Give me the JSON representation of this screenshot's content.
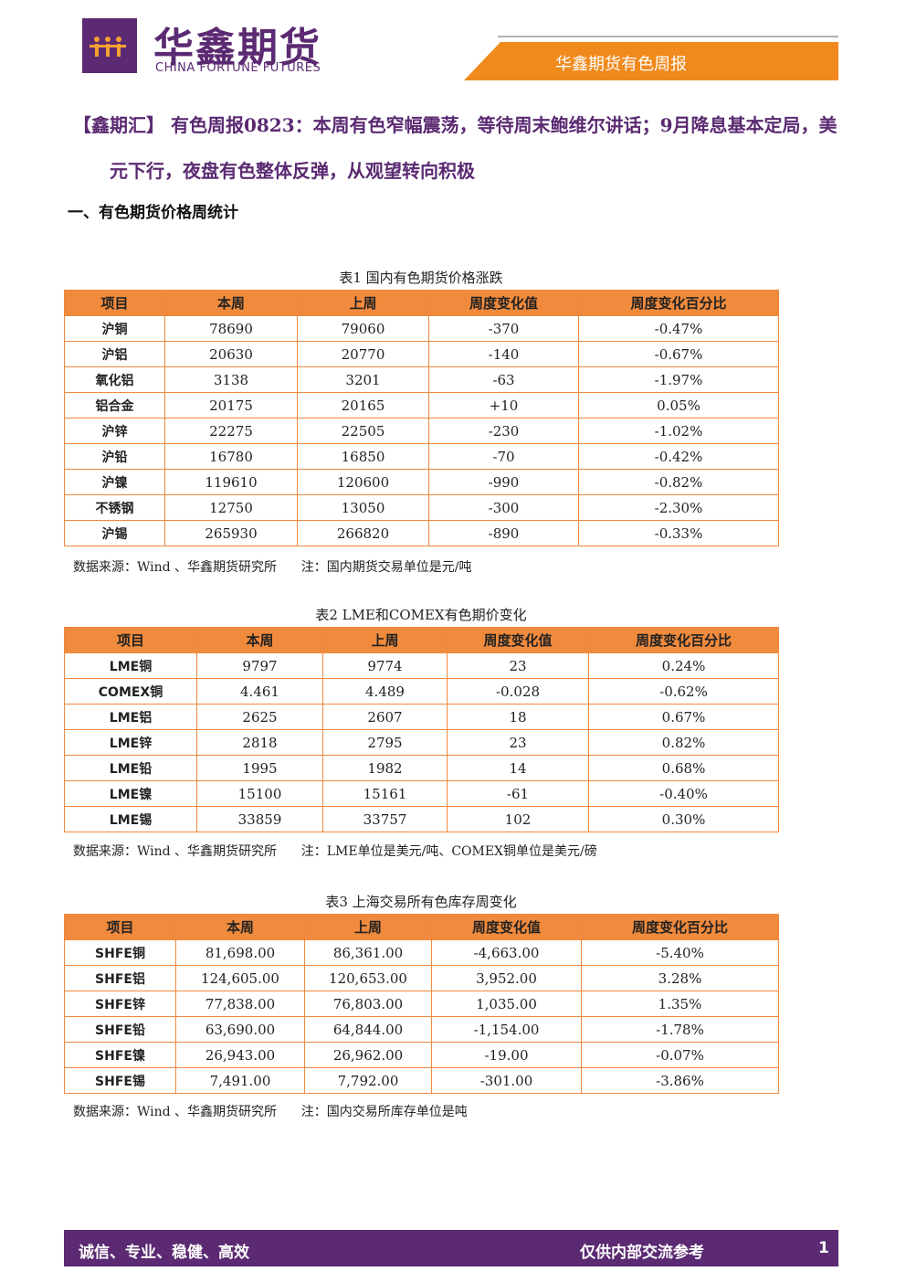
{
  "header": {
    "logo_cn": "华鑫期货",
    "logo_en": "CHINA FORTUNE FUTURES",
    "report_name": "华鑫期货有色周报"
  },
  "title": {
    "tag": "【鑫期汇】",
    "text": "有色周报0823：本周有色窄幅震荡，等待周末鲍维尔讲话；9月降息基本定局，美元下行，夜盘有色整体反弹，从观望转向积极"
  },
  "section": "一、有色期货价格周统计",
  "tables": [
    {
      "caption": "表1  国内有色期货价格涨跌",
      "columns": [
        "项目",
        "本周",
        "上周",
        "周度变化值",
        "周度变化百分比"
      ],
      "rows": [
        [
          "沪铜",
          "78690",
          "79060",
          "-370",
          "-0.47%"
        ],
        [
          "沪铝",
          "20630",
          "20770",
          "-140",
          "-0.67%"
        ],
        [
          "氧化铝",
          "3138",
          "3201",
          "-63",
          "-1.97%"
        ],
        [
          "铝合金",
          "20175",
          "20165",
          "+10",
          "0.05%"
        ],
        [
          "沪锌",
          "22275",
          "22505",
          "-230",
          "-1.02%"
        ],
        [
          "沪铅",
          "16780",
          "16850",
          "-70",
          "-0.42%"
        ],
        [
          "沪镍",
          "119610",
          "120600",
          "-990",
          "-0.82%"
        ],
        [
          "不锈钢",
          "12750",
          "13050",
          "-300",
          "-2.30%"
        ],
        [
          "沪锡",
          "265930",
          "266820",
          "-890",
          "-0.33%"
        ]
      ],
      "note": "数据来源：Wind 、华鑫期货研究所      注：国内期货交易单位是元/吨"
    },
    {
      "caption": "表2 LME和COMEX有色期价变化",
      "columns": [
        "项目",
        "本周",
        "上周",
        "周度变化值",
        "周度变化百分比"
      ],
      "rows": [
        [
          "LME铜",
          "9797",
          "9774",
          "23",
          "0.24%"
        ],
        [
          "COMEX铜",
          "4.461",
          "4.489",
          "-0.028",
          "-0.62%"
        ],
        [
          "LME铝",
          "2625",
          "2607",
          "18",
          "0.67%"
        ],
        [
          "LME锌",
          "2818",
          "2795",
          "23",
          "0.82%"
        ],
        [
          "LME铅",
          "1995",
          "1982",
          "14",
          "0.68%"
        ],
        [
          "LME镍",
          "15100",
          "15161",
          "-61",
          "-0.40%"
        ],
        [
          "LME锡",
          "33859",
          "33757",
          "102",
          "0.30%"
        ]
      ],
      "note": "数据来源：Wind 、华鑫期货研究所      注：LME单位是美元/吨、COMEX铜单位是美元/磅"
    },
    {
      "caption": "表3 上海交易所有色库存周变化",
      "columns": [
        "项目",
        "本周",
        "上周",
        "周度变化值",
        "周度变化百分比"
      ],
      "rows": [
        [
          "SHFE铜",
          "81,698.00",
          "86,361.00",
          "-4,663.00",
          "-5.40%"
        ],
        [
          "SHFE铝",
          "124,605.00",
          "120,653.00",
          "3,952.00",
          "3.28%"
        ],
        [
          "SHFE锌",
          "77,838.00",
          "76,803.00",
          "1,035.00",
          "1.35%"
        ],
        [
          "SHFE铅",
          "63,690.00",
          "64,844.00",
          "-1,154.00",
          "-1.78%"
        ],
        [
          "SHFE镍",
          "26,943.00",
          "26,962.00",
          "-19.00",
          "-0.07%"
        ],
        [
          "SHFE锡",
          "7,491.00",
          "7,792.00",
          "-301.00",
          "-3.86%"
        ]
      ],
      "note": "数据来源：Wind 、华鑫期货研究所      注：国内交易所库存单位是吨"
    }
  ],
  "footer": {
    "slogan": "诚信、专业、稳健、高效",
    "notice": "仅供内部交流参考",
    "page": "1"
  }
}
